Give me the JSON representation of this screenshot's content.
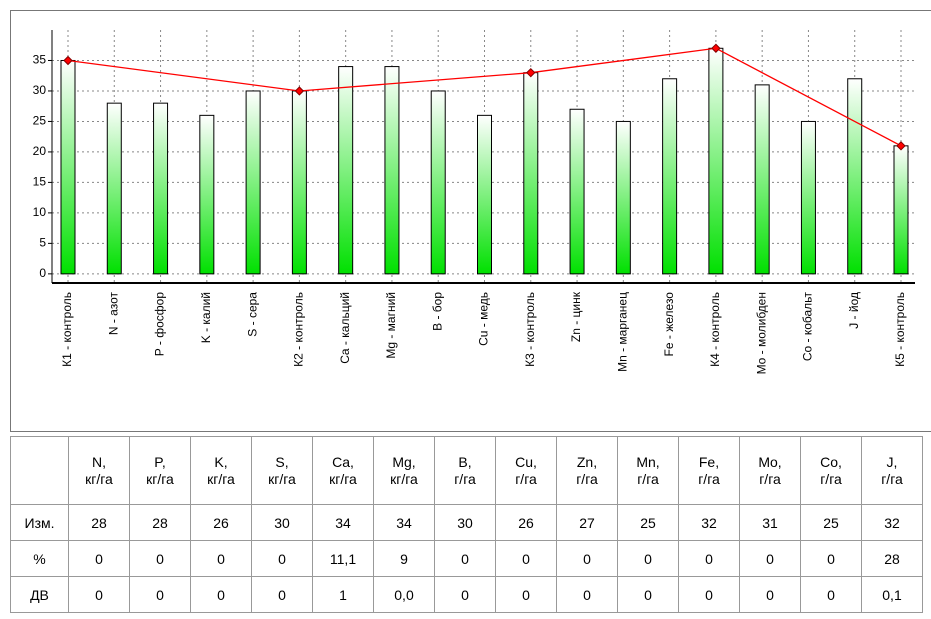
{
  "chart_data": {
    "type": "bar",
    "categories": [
      "К1 - контроль",
      "N - азот",
      "P - фосфор",
      "K - калий",
      "S - сера",
      "К2 - контроль",
      "Ca - кальций",
      "Mg - магний",
      "B - бор",
      "Cu - медь",
      "К3 - контроль",
      "Zn - цинк",
      "Mn - марганец",
      "Fe - железо",
      "К4 - контроль",
      "Mo - молибден",
      "Co - кобальт",
      "J - йод",
      "К5 - контроль"
    ],
    "values": [
      35,
      28,
      28,
      26,
      30,
      30,
      34,
      34,
      30,
      26,
      33,
      27,
      25,
      32,
      37,
      31,
      25,
      32,
      21
    ],
    "color": "#00e000",
    "line": {
      "type": "line",
      "color": "#ff0000",
      "categories": [
        "К1 - контроль",
        "К2 - контроль",
        "К3 - контроль",
        "К4 - контроль",
        "К5 - контроль"
      ],
      "values": [
        35,
        30,
        33,
        37,
        21
      ]
    },
    "ylim": [
      -1.5,
      40
    ],
    "yticks": [
      0,
      5,
      10,
      15,
      20,
      25,
      30,
      35
    ],
    "grid": true
  },
  "table": {
    "columns": [
      {
        "name": "N,",
        "unit": "кг/га"
      },
      {
        "name": "P,",
        "unit": "кг/га"
      },
      {
        "name": "K,",
        "unit": "кг/га"
      },
      {
        "name": "S,",
        "unit": "кг/га"
      },
      {
        "name": "Ca,",
        "unit": "кг/га"
      },
      {
        "name": "Mg,",
        "unit": "кг/га"
      },
      {
        "name": "B,",
        "unit": "г/га"
      },
      {
        "name": "Cu,",
        "unit": "г/га"
      },
      {
        "name": "Zn,",
        "unit": "г/га"
      },
      {
        "name": "Mn,",
        "unit": "г/га"
      },
      {
        "name": "Fe,",
        "unit": "г/га"
      },
      {
        "name": "Mo,",
        "unit": "г/га"
      },
      {
        "name": "Co,",
        "unit": "г/га"
      },
      {
        "name": "J,",
        "unit": "г/га"
      }
    ],
    "rows": [
      {
        "label": "Изм.",
        "values": [
          "28",
          "28",
          "26",
          "30",
          "34",
          "34",
          "30",
          "26",
          "27",
          "25",
          "32",
          "31",
          "25",
          "32"
        ]
      },
      {
        "label": "%",
        "values": [
          "0",
          "0",
          "0",
          "0",
          "11,1",
          "9",
          "0",
          "0",
          "0",
          "0",
          "0",
          "0",
          "0",
          "28"
        ]
      },
      {
        "label": "ДВ",
        "values": [
          "0",
          "0",
          "0",
          "0",
          "1",
          "0,0",
          "0",
          "0",
          "0",
          "0",
          "0",
          "0",
          "0",
          "0,1"
        ]
      }
    ]
  }
}
